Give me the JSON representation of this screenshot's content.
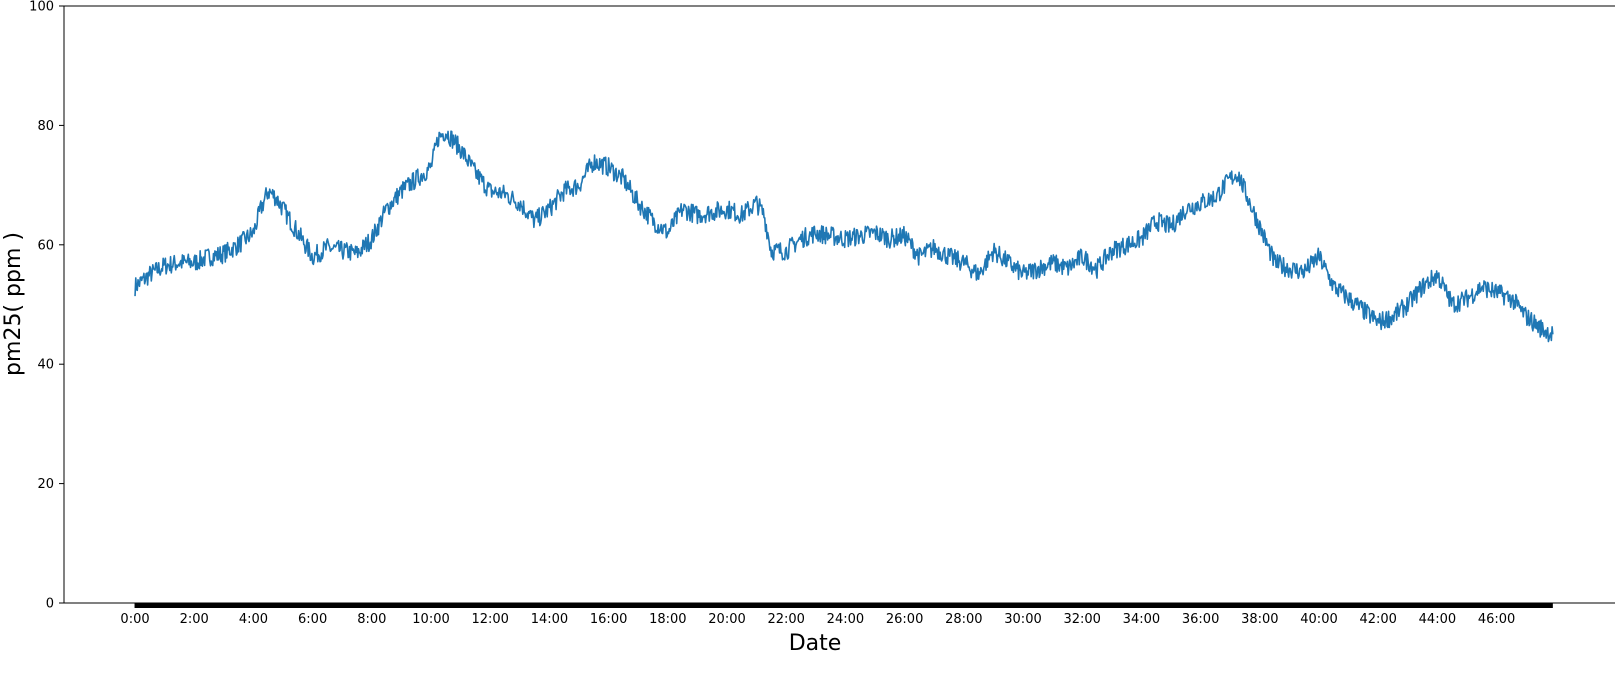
{
  "chart_data": {
    "type": "line",
    "title": "",
    "xlabel": "Date",
    "ylabel": "pm25( ppm )",
    "x_unit": "hours",
    "xlim": [
      -2.4,
      50
    ],
    "ylim": [
      0,
      100
    ],
    "x_ticks": [
      0,
      2,
      4,
      6,
      8,
      10,
      12,
      14,
      16,
      18,
      20,
      22,
      24,
      26,
      28,
      30,
      32,
      34,
      36,
      38,
      40,
      42,
      44,
      46
    ],
    "x_tick_labels": [
      "0:00",
      "2:00",
      "4:00",
      "6:00",
      "8:00",
      "10:00",
      "12:00",
      "14:00",
      "16:00",
      "18:00",
      "20:00",
      "22:00",
      "24:00",
      "26:00",
      "28:00",
      "30:00",
      "32:00",
      "34:00",
      "36:00",
      "38:00",
      "40:00",
      "42:00",
      "44:00",
      "46:00"
    ],
    "y_ticks": [
      0,
      20,
      40,
      60,
      80,
      100
    ],
    "y_tick_labels": [
      "0",
      "20",
      "40",
      "60",
      "80",
      "100"
    ],
    "grid": false,
    "minor_ticks": "dense black band along the x-axis from 0:00 to about 48:00",
    "series": [
      {
        "color": "#1f77b4",
        "x": [
          0,
          0.5,
          1,
          1.5,
          2,
          2.5,
          3,
          3.5,
          4,
          4.25,
          4.5,
          4.75,
          5,
          5.5,
          6,
          6.5,
          7,
          7.5,
          8,
          8.5,
          9,
          9.5,
          10,
          10.25,
          10.5,
          11,
          11.5,
          12,
          12.5,
          13,
          13.5,
          14,
          14.5,
          15,
          15.5,
          16,
          16.5,
          17,
          17.5,
          18,
          18.5,
          19,
          19.5,
          20,
          20.5,
          21,
          21.25,
          21.5,
          22,
          22.5,
          23,
          23.5,
          24,
          24.5,
          25,
          25.5,
          26,
          26.5,
          27,
          27.5,
          28,
          28.5,
          29,
          29.5,
          30,
          30.5,
          31,
          31.5,
          32,
          32.5,
          33,
          33.5,
          34,
          34.5,
          35,
          35.5,
          36,
          36.5,
          37,
          37.25,
          37.5,
          38,
          38.5,
          39,
          39.5,
          40,
          40.5,
          41,
          41.5,
          42,
          42.5,
          43,
          43.5,
          44,
          44.5,
          45,
          45.5,
          46,
          46.5,
          47,
          47.5,
          47.9
        ],
        "y": [
          53,
          55,
          56.5,
          57,
          57,
          58,
          58.5,
          60,
          62,
          66,
          69,
          68,
          66,
          62,
          58,
          59.5,
          59,
          58.5,
          61,
          66,
          69,
          71,
          73,
          78,
          79,
          76,
          72,
          69,
          68.5,
          67,
          64,
          66,
          69,
          70,
          74,
          73,
          71,
          67,
          64,
          62,
          66,
          65,
          65.5,
          66,
          65,
          67,
          65,
          59,
          59,
          61,
          62,
          61.5,
          61,
          61.5,
          62,
          61,
          61.5,
          58,
          59.5,
          58,
          57,
          55,
          59,
          57,
          55,
          56,
          57,
          56,
          58,
          56,
          59,
          60,
          61,
          64,
          63,
          66,
          67,
          68,
          71,
          72,
          69,
          63,
          57,
          56,
          55.5,
          58,
          53,
          51,
          49,
          47,
          48,
          50,
          53,
          55,
          50,
          51,
          53,
          52,
          51,
          48,
          46,
          45
        ]
      }
    ]
  }
}
